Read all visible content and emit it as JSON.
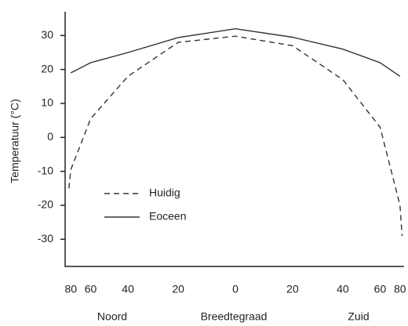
{
  "chart_data": {
    "type": "line",
    "x_scale": "sine",
    "ylabel": "Temperatuur (°C)",
    "xlabel": "Breedtegraad",
    "annotations": [
      "Noord",
      "Zuid"
    ],
    "xlim": [
      -90,
      90
    ],
    "ylim": [
      -38,
      37
    ],
    "xticks": [
      {
        "value": -80,
        "label": "80"
      },
      {
        "value": -60,
        "label": "60"
      },
      {
        "value": -40,
        "label": "40"
      },
      {
        "value": -20,
        "label": "20"
      },
      0,
      20,
      40,
      60,
      80
    ],
    "yticks": [
      30,
      20,
      10,
      0,
      -10,
      -20,
      -30
    ],
    "series": [
      {
        "name": "Huidig",
        "color": "#333333",
        "dash": true,
        "x": [
          -85,
          -80,
          -60,
          -40,
          -20,
          0,
          20,
          40,
          60,
          80,
          86
        ],
        "values": [
          -15,
          -9.5,
          5.5,
          18,
          28,
          29.8,
          27,
          17,
          3,
          -20,
          -29
        ]
      },
      {
        "name": "Eoceen",
        "color": "#333333",
        "dash": false,
        "x": [
          -80,
          -60,
          -40,
          -20,
          0,
          20,
          40,
          60,
          80
        ],
        "values": [
          19,
          22,
          25,
          29.4,
          32,
          29.5,
          26,
          22,
          18
        ]
      }
    ]
  }
}
